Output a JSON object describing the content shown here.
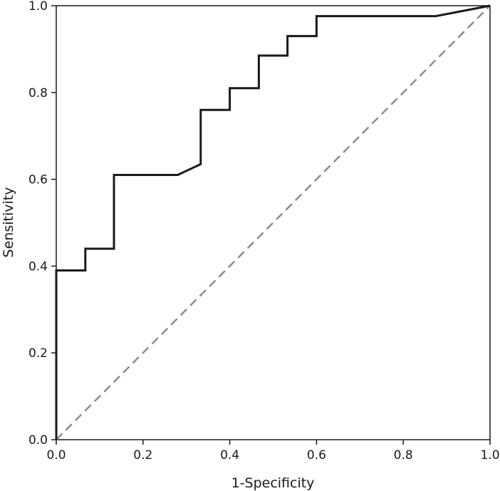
{
  "chart_data": {
    "type": "line",
    "title": "",
    "xlabel": "1-Specificity",
    "ylabel": "Sensitivity",
    "xlim": [
      0,
      1
    ],
    "ylim": [
      0,
      1
    ],
    "xticks": [
      "0.0",
      "0.2",
      "0.4",
      "0.6",
      "0.8",
      "1.0"
    ],
    "yticks": [
      "0.0",
      "0.2",
      "0.4",
      "0.6",
      "0.8",
      "1.0"
    ],
    "grid": false,
    "legend": "none",
    "series": [
      {
        "style": "solid",
        "color": "#1a1a1a",
        "x": [
          0,
          0,
          0.067,
          0.067,
          0.133,
          0.133,
          0.28,
          0.333,
          0.333,
          0.4,
          0.4,
          0.467,
          0.467,
          0.533,
          0.533,
          0.6,
          0.6,
          0.875,
          1.0
        ],
        "y": [
          0,
          0.39,
          0.39,
          0.44,
          0.44,
          0.61,
          0.61,
          0.635,
          0.76,
          0.76,
          0.81,
          0.81,
          0.885,
          0.885,
          0.93,
          0.93,
          0.976,
          0.976,
          1.0
        ]
      },
      {
        "style": "dashed",
        "color": "#8c8c8c",
        "x": [
          0,
          1
        ],
        "y": [
          0,
          1
        ]
      }
    ]
  }
}
